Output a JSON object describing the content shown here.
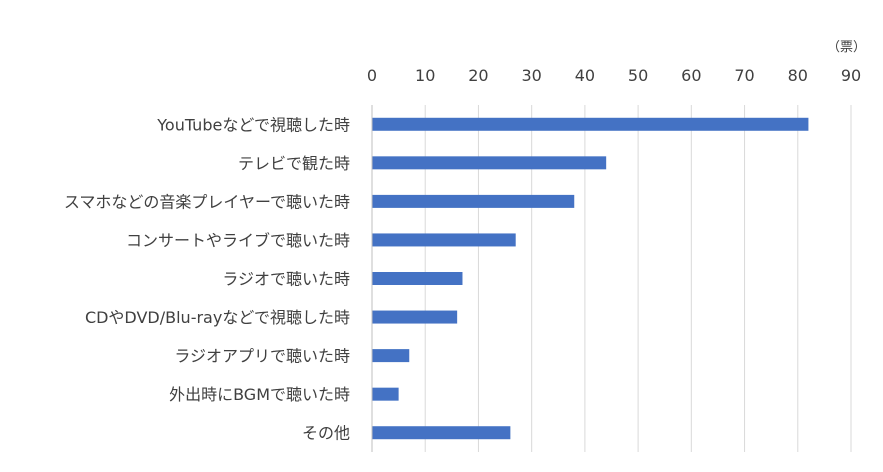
{
  "chart_data": {
    "type": "bar",
    "orientation": "horizontal",
    "unit": "（票）",
    "categories": [
      "YouTubeなどで視聴した時",
      "テレビで観た時",
      "スマホなどの音楽プレイヤーで聴いた時",
      "コンサートやライブで聴いた時",
      "ラジオで聴いた時",
      "CDやDVD/Blu-rayなどで視聴した時",
      "ラジオアプリで聴いた時",
      "外出時にBGMで聴いた時",
      "その他"
    ],
    "values": [
      82,
      44,
      38,
      27,
      17,
      16,
      7,
      5,
      26
    ],
    "xlim": [
      0,
      90
    ],
    "xticks": [
      "0",
      "10",
      "20",
      "30",
      "40",
      "50",
      "60",
      "70",
      "80",
      "90"
    ],
    "x_axis_position": "top",
    "grid": true,
    "bar_color": "#4472c4"
  }
}
